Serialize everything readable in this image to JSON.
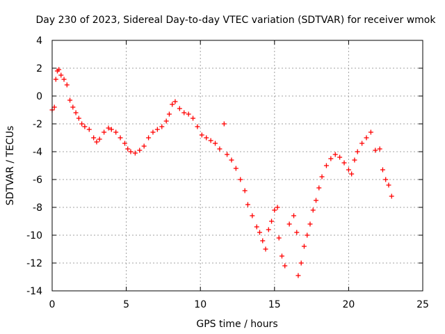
{
  "chart_data": {
    "type": "scatter",
    "title": "Day 230 of 2023, Sidereal Day-to-day VTEC variation (SDTVAR) for receiver wmok",
    "xlabel": "GPS time / hours",
    "ylabel": "SDTVAR / TECUs",
    "xlim": [
      0,
      25
    ],
    "ylim": [
      -14,
      4
    ],
    "xticks": [
      0,
      5,
      10,
      15,
      20,
      25
    ],
    "yticks": [
      4,
      2,
      0,
      -2,
      -4,
      -6,
      -8,
      -10,
      -12,
      -14
    ],
    "grid": true,
    "marker": "plus",
    "color": "#ff0000",
    "series": [
      {
        "name": "SDTVAR",
        "points": [
          [
            0.0,
            -1.0
          ],
          [
            0.15,
            -0.8
          ],
          [
            0.25,
            1.2
          ],
          [
            0.35,
            1.8
          ],
          [
            0.45,
            1.9
          ],
          [
            0.6,
            1.5
          ],
          [
            0.8,
            1.2
          ],
          [
            1.0,
            0.8
          ],
          [
            1.2,
            -0.3
          ],
          [
            1.4,
            -0.8
          ],
          [
            1.6,
            -1.2
          ],
          [
            1.8,
            -1.6
          ],
          [
            2.0,
            -2.0
          ],
          [
            2.2,
            -2.2
          ],
          [
            2.5,
            -2.4
          ],
          [
            2.8,
            -3.0
          ],
          [
            3.0,
            -3.3
          ],
          [
            3.2,
            -3.1
          ],
          [
            3.5,
            -2.6
          ],
          [
            3.8,
            -2.3
          ],
          [
            4.0,
            -2.4
          ],
          [
            4.3,
            -2.6
          ],
          [
            4.6,
            -3.0
          ],
          [
            4.9,
            -3.4
          ],
          [
            5.1,
            -3.8
          ],
          [
            5.3,
            -4.0
          ],
          [
            5.6,
            -4.1
          ],
          [
            5.9,
            -3.9
          ],
          [
            6.2,
            -3.6
          ],
          [
            6.5,
            -3.0
          ],
          [
            6.8,
            -2.6
          ],
          [
            7.1,
            -2.4
          ],
          [
            7.4,
            -2.2
          ],
          [
            7.7,
            -1.8
          ],
          [
            7.9,
            -1.3
          ],
          [
            8.1,
            -0.6
          ],
          [
            8.3,
            -0.4
          ],
          [
            8.6,
            -0.9
          ],
          [
            8.9,
            -1.2
          ],
          [
            9.2,
            -1.3
          ],
          [
            9.5,
            -1.6
          ],
          [
            9.8,
            -2.2
          ],
          [
            10.1,
            -2.8
          ],
          [
            10.4,
            -3.0
          ],
          [
            10.7,
            -3.2
          ],
          [
            11.0,
            -3.4
          ],
          [
            11.3,
            -3.8
          ],
          [
            11.6,
            -2.0
          ],
          [
            11.8,
            -4.2
          ],
          [
            12.1,
            -4.6
          ],
          [
            12.4,
            -5.2
          ],
          [
            12.7,
            -6.0
          ],
          [
            13.0,
            -6.8
          ],
          [
            13.2,
            -7.8
          ],
          [
            13.5,
            -8.6
          ],
          [
            13.8,
            -9.4
          ],
          [
            14.0,
            -9.8
          ],
          [
            14.2,
            -10.4
          ],
          [
            14.4,
            -11.0
          ],
          [
            14.6,
            -9.6
          ],
          [
            14.8,
            -9.0
          ],
          [
            15.0,
            -8.2
          ],
          [
            15.2,
            -8.0
          ],
          [
            15.3,
            -10.2
          ],
          [
            15.5,
            -11.5
          ],
          [
            15.7,
            -12.2
          ],
          [
            16.0,
            -9.2
          ],
          [
            16.3,
            -8.6
          ],
          [
            16.5,
            -9.8
          ],
          [
            16.6,
            -12.9
          ],
          [
            16.8,
            -12.0
          ],
          [
            17.0,
            -10.8
          ],
          [
            17.2,
            -10.0
          ],
          [
            17.4,
            -9.2
          ],
          [
            17.6,
            -8.2
          ],
          [
            17.8,
            -7.5
          ],
          [
            18.0,
            -6.6
          ],
          [
            18.2,
            -5.8
          ],
          [
            18.5,
            -5.0
          ],
          [
            18.8,
            -4.5
          ],
          [
            19.1,
            -4.2
          ],
          [
            19.4,
            -4.4
          ],
          [
            19.7,
            -4.8
          ],
          [
            20.0,
            -5.3
          ],
          [
            20.2,
            -5.6
          ],
          [
            20.4,
            -4.6
          ],
          [
            20.6,
            -4.0
          ],
          [
            20.9,
            -3.4
          ],
          [
            21.2,
            -3.0
          ],
          [
            21.5,
            -2.6
          ],
          [
            21.8,
            -3.9
          ],
          [
            22.1,
            -3.8
          ],
          [
            22.3,
            -5.3
          ],
          [
            22.5,
            -6.0
          ],
          [
            22.7,
            -6.4
          ],
          [
            22.9,
            -7.2
          ]
        ]
      }
    ]
  }
}
